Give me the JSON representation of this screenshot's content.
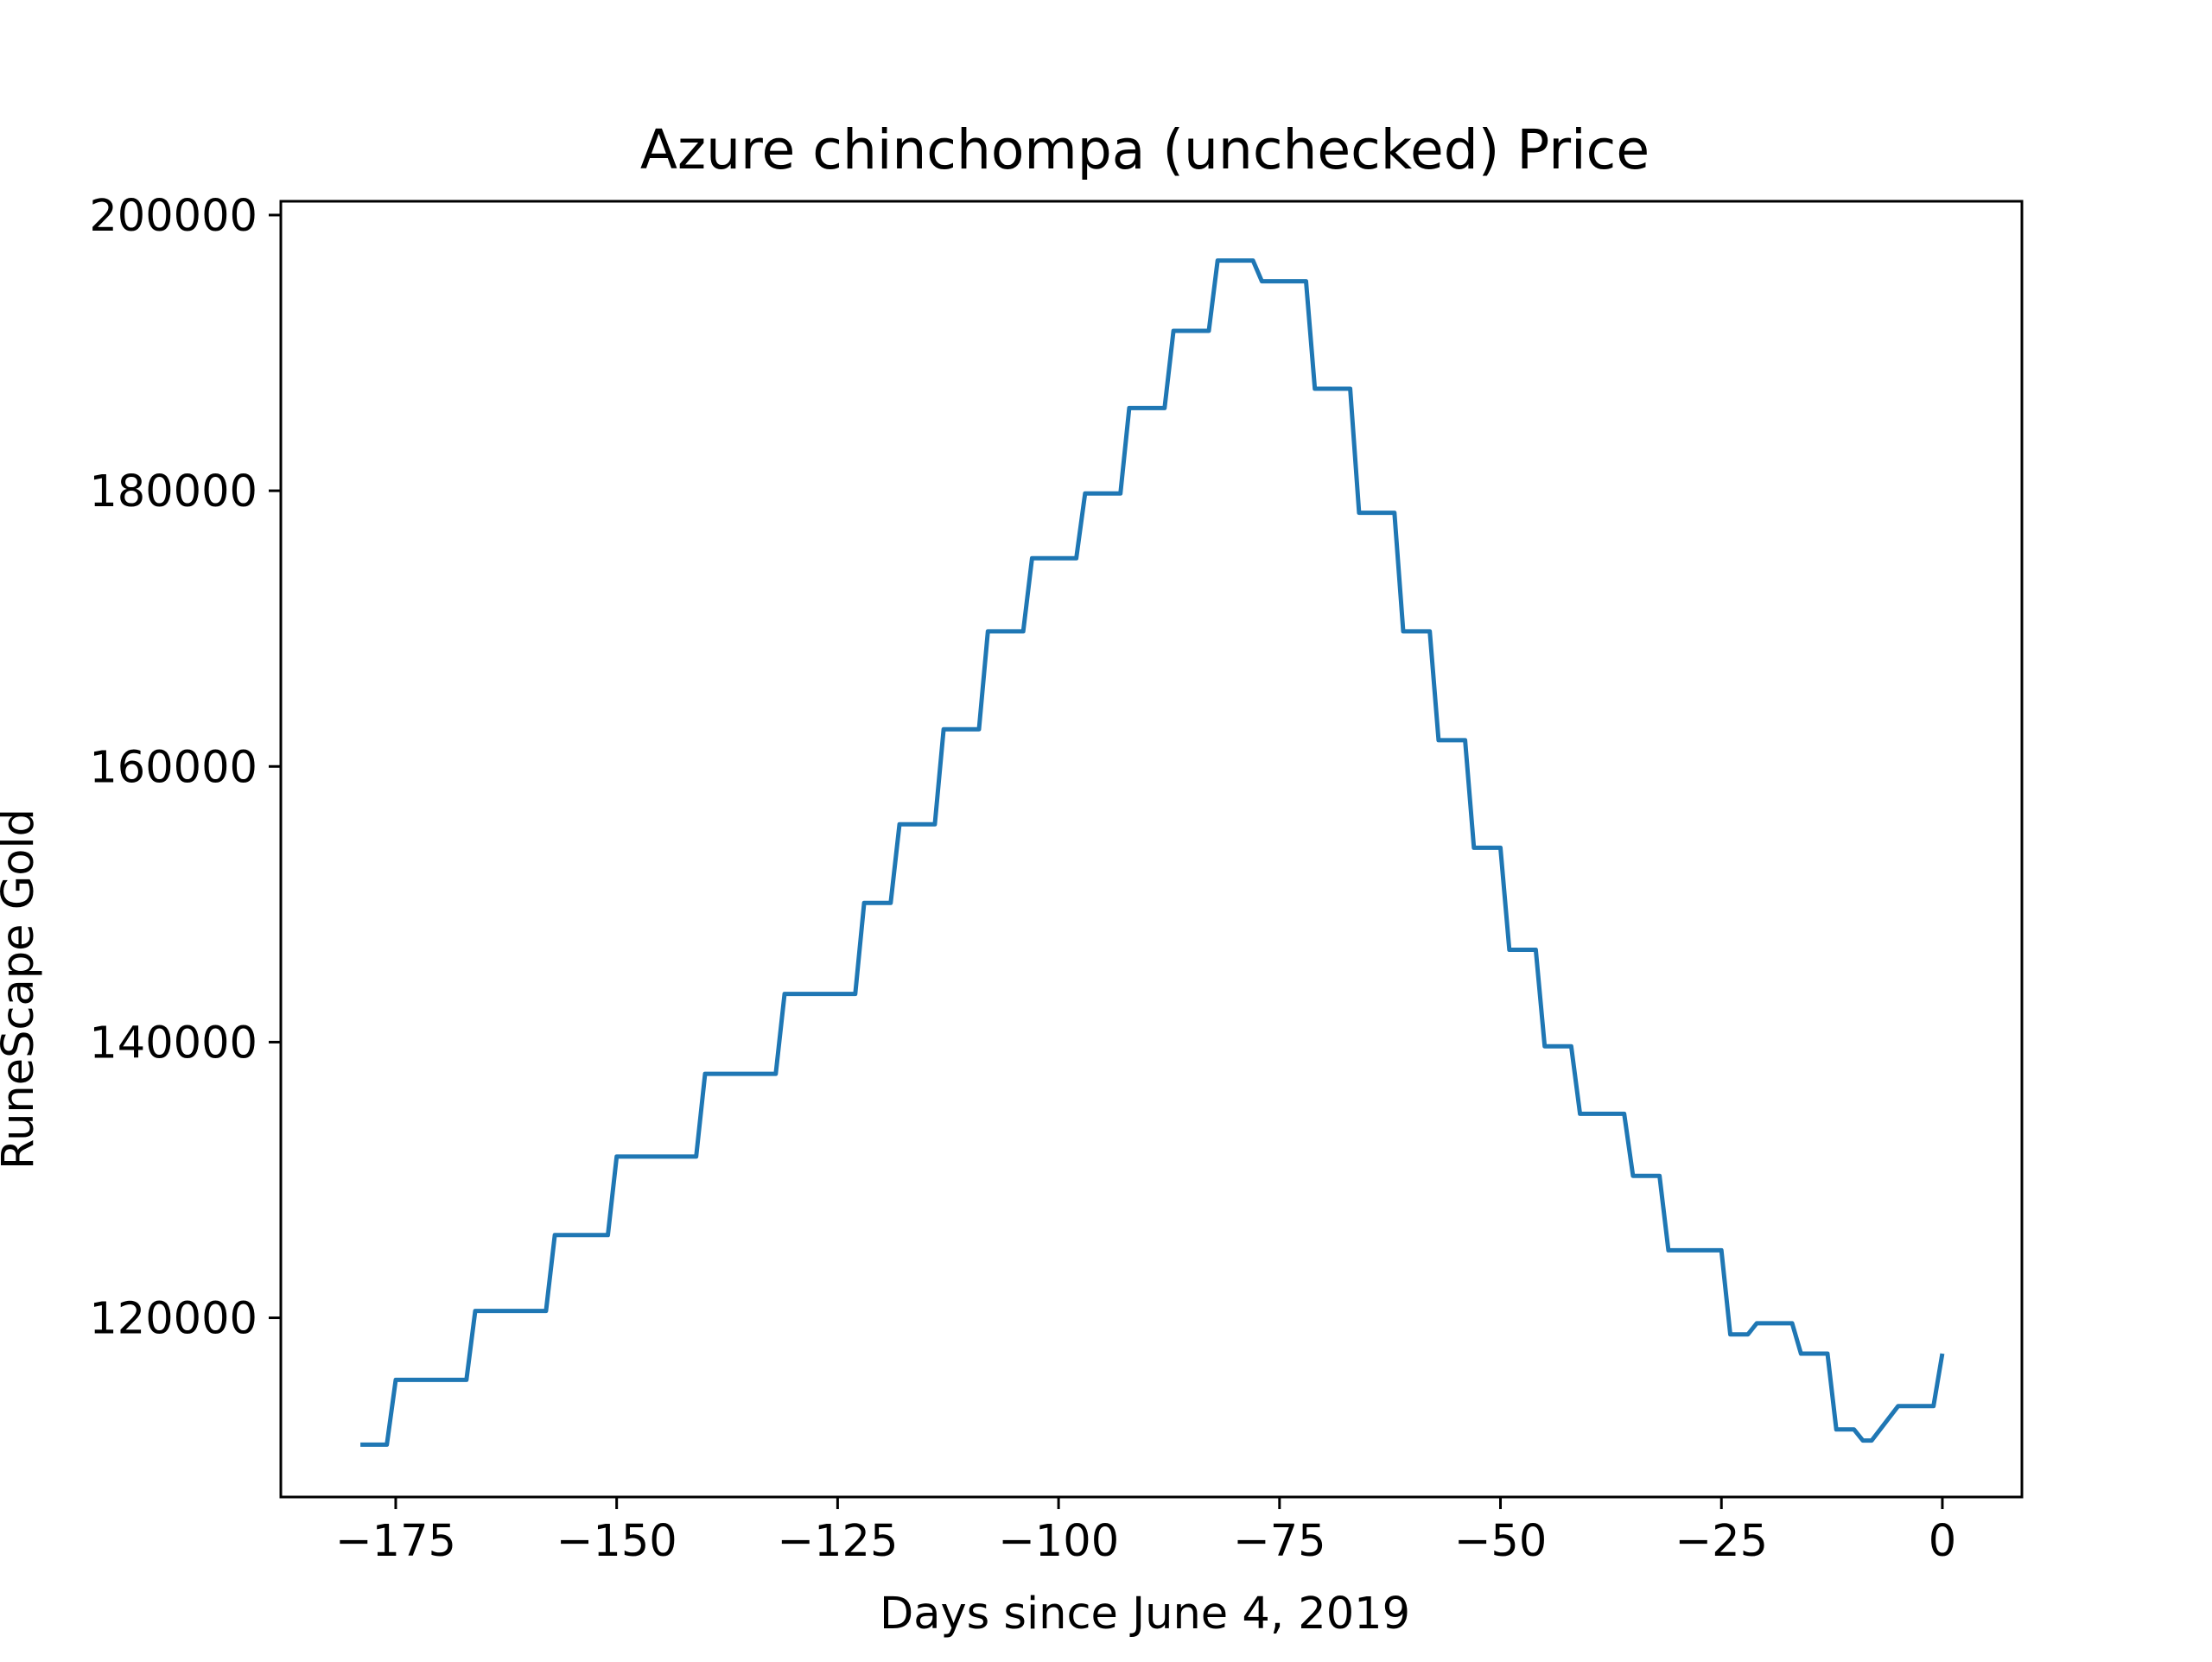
{
  "chart_data": {
    "type": "line",
    "title": "Azure chinchompa (unchecked) Price",
    "xlabel": "Days since June 4, 2019",
    "ylabel": "RuneScape Gold",
    "xlim": [
      -188,
      9
    ],
    "ylim": [
      107000,
      201000
    ],
    "xticks": [
      -175,
      -150,
      -125,
      -100,
      -75,
      -50,
      -25,
      0
    ],
    "yticks": [
      120000,
      140000,
      160000,
      180000,
      200000
    ],
    "xtick_labels": [
      "−175",
      "−150",
      "−125",
      "−100",
      "−75",
      "−50",
      "−25",
      "0"
    ],
    "ytick_labels": [
      "120000",
      "140000",
      "160000",
      "180000",
      "200000"
    ],
    "grid": false,
    "colors": {
      "series": "#1f77b4",
      "frame": "#000000"
    },
    "series": [
      {
        "x": [
          -179,
          -176,
          -175,
          -167,
          -166,
          -158,
          -157,
          -151,
          -150,
          -141,
          -140,
          -132,
          -131,
          -123,
          -122,
          -119,
          -118,
          -114,
          -113,
          -109,
          -108,
          -104,
          -103,
          -98,
          -97,
          -93,
          -92,
          -88,
          -87,
          -83,
          -82,
          -78,
          -77,
          -72,
          -71,
          -67,
          -66,
          -62,
          -61,
          -58,
          -57,
          -54,
          -53,
          -50,
          -49,
          -46,
          -45,
          -42,
          -41,
          -36,
          -35,
          -32,
          -31,
          -25,
          -24,
          -22,
          -21,
          -17,
          -16,
          -13,
          -12,
          -10,
          -9,
          -8,
          -5,
          -4,
          -1,
          0
        ],
        "y": [
          110800,
          110800,
          115500,
          115500,
          120500,
          120500,
          126000,
          126000,
          131700,
          131700,
          137700,
          137700,
          143500,
          143500,
          150100,
          150100,
          155800,
          155800,
          162700,
          162700,
          169800,
          169800,
          175100,
          175100,
          179800,
          179800,
          186000,
          186000,
          191600,
          191600,
          196700,
          196700,
          195200,
          195200,
          187400,
          187400,
          178400,
          178400,
          169800,
          169800,
          161900,
          161900,
          154100,
          154100,
          146700,
          146700,
          139700,
          139700,
          134800,
          134800,
          130300,
          130300,
          124900,
          124900,
          118800,
          118800,
          119600,
          119600,
          117400,
          117400,
          111900,
          111900,
          111100,
          111100,
          113600,
          113600,
          113600,
          117400
        ]
      }
    ]
  }
}
